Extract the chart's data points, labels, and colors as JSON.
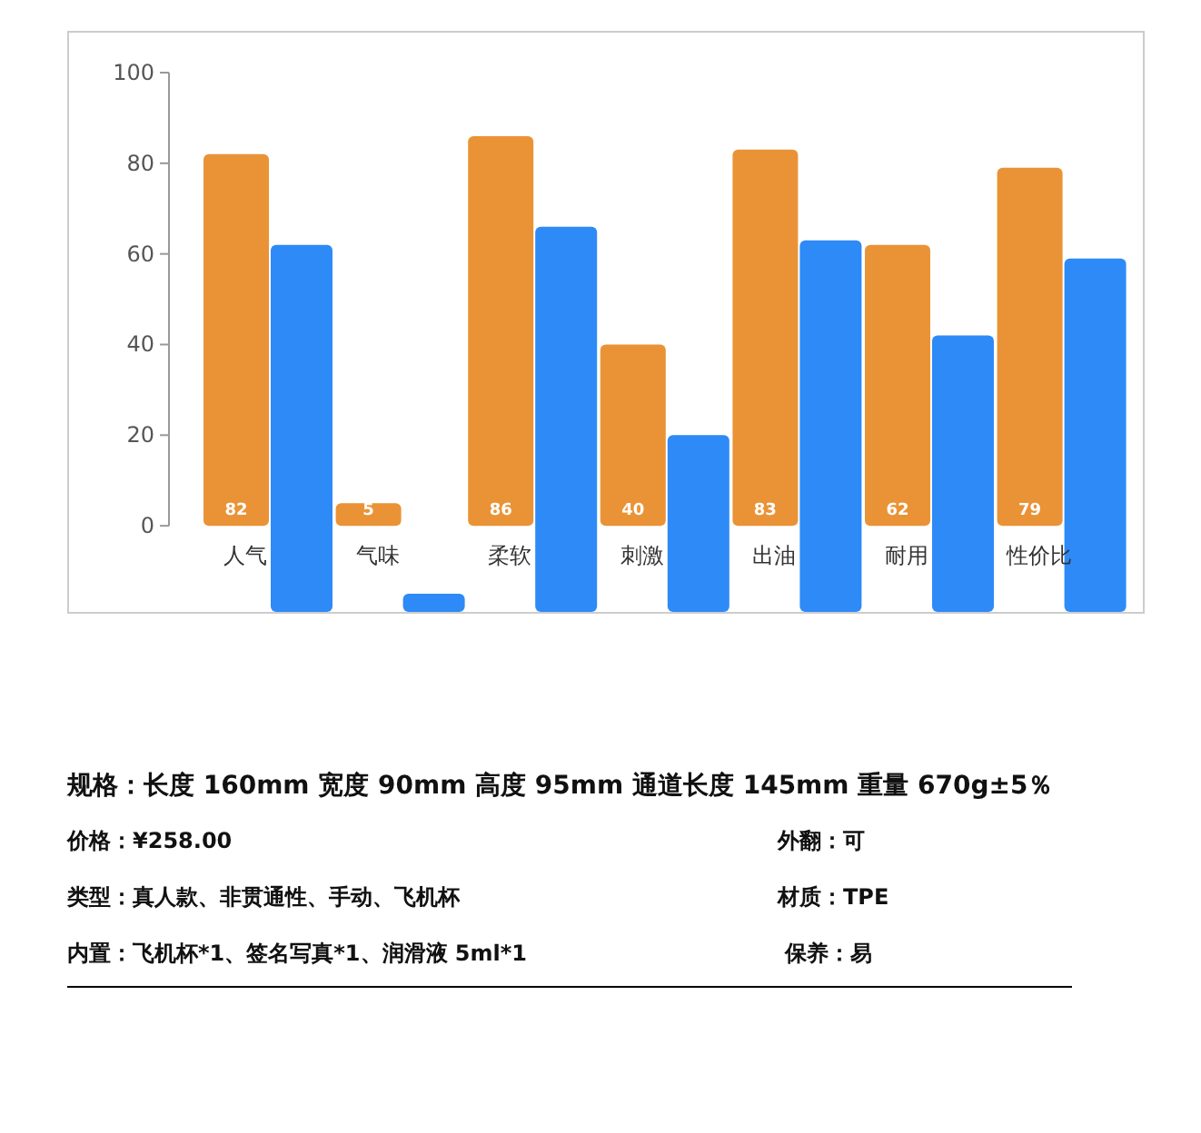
{
  "chart_data": {
    "type": "bar",
    "categories": [
      "人气",
      "气味",
      "柔软",
      "刺激",
      "出油",
      "耐用",
      "性价比"
    ],
    "series": [
      {
        "color": "#ea9336",
        "values": [
          82,
          5,
          86,
          40,
          83,
          62,
          79
        ],
        "value_labels": [
          "82",
          "5",
          "86",
          "40",
          "83",
          "62",
          "79"
        ]
      },
      {
        "color": "#2e8af7",
        "base": [
          -19,
          -19,
          -19,
          -19,
          -19,
          -19,
          -19
        ],
        "values": [
          81,
          4,
          85,
          39,
          82,
          61,
          78
        ]
      }
    ],
    "ylim": [
      -19,
      100
    ],
    "yticks": [
      0,
      20,
      40,
      60,
      80,
      100
    ],
    "annotations": [
      "规格：长度 160mm  宽度 90mm  高度 95mm  通道长度 145mm  重量 670g±5％",
      "价格：¥258.00",
      "外翻：可",
      "类型：真人款、非贯通性、手动、飞机杯",
      "材质：TPE",
      "内置：飞机杯*1、签名写真*1、润滑液 5ml*1",
      "保养：易"
    ]
  }
}
